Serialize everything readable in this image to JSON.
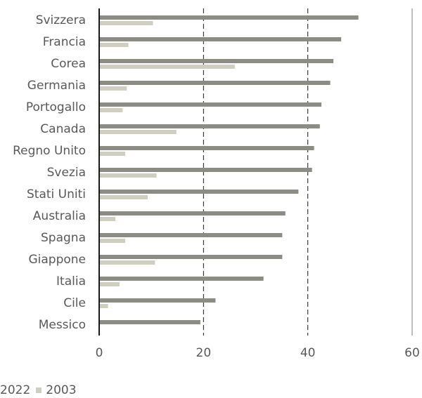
{
  "chart_data": {
    "type": "bar",
    "orientation": "horizontal",
    "categories": [
      "Svizzera",
      "Francia",
      "Corea",
      "Germania",
      "Portogallo",
      "Canada",
      "Regno Unito",
      "Svezia",
      "Stati Uniti",
      "Australia",
      "Spagna",
      "Giappone",
      "Italia",
      "Cile",
      "Messico"
    ],
    "series": [
      {
        "name": "2022",
        "color": "#8c8c84",
        "values": [
          49.7,
          46.4,
          44.9,
          44.3,
          42.6,
          42.3,
          41.2,
          40.8,
          38.2,
          35.7,
          35.1,
          35.1,
          31.5,
          22.3,
          19.4
        ]
      },
      {
        "name": "2003",
        "color": "#d0cec1",
        "values": [
          10.3,
          5.6,
          26.0,
          5.3,
          4.5,
          14.8,
          5.0,
          11.0,
          9.3,
          3.1,
          5.0,
          10.7,
          3.9,
          1.7,
          0.0
        ]
      }
    ],
    "xlim": [
      0,
      60
    ],
    "xticks": [
      0,
      20,
      40,
      60
    ],
    "grid": true,
    "title": "",
    "xlabel": "",
    "ylabel": "",
    "legend_position": "bottom-left"
  }
}
